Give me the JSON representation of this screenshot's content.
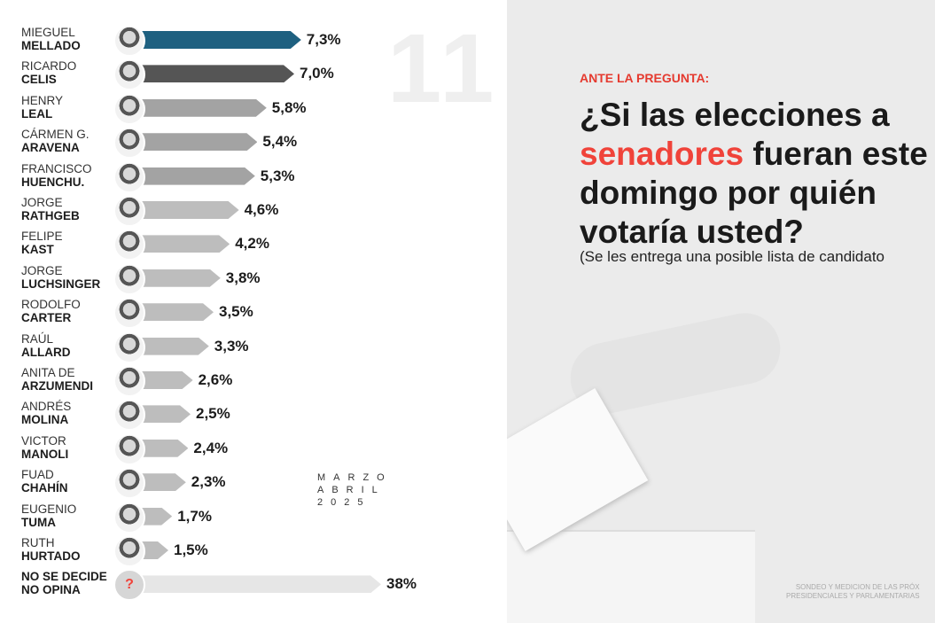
{
  "watermark_number": "11",
  "question": {
    "lead": "ANTE LA PREGUNTA:",
    "part1": "¿Si las elecciones a ",
    "highlight": "senadores",
    "part2": " fueran este domingo por quién votaría usted?",
    "note": "(Se les entrega una posible lista de candidato"
  },
  "date": {
    "line1": "MARZO",
    "line2": "ABRIL",
    "line3": "2025"
  },
  "footer": {
    "line1": "SONDEO Y MEDICION DE LAS PRÓX",
    "line2": "PRESIDENCIALES Y PARLAMENTARIAS"
  },
  "colors": {
    "leader": "#1e6080",
    "second": "#555555",
    "mid": "#a3a3a3",
    "low": "#bdbdbd",
    "undecided": "#e6e6e6",
    "accent": "#f0433a"
  },
  "chart_data": {
    "type": "bar",
    "orientation": "horizontal",
    "unit": "%",
    "categories": [
      {
        "first": "MIEGUEL",
        "last": "MELLADO"
      },
      {
        "first": "RICARDO",
        "last": "CELIS"
      },
      {
        "first": "HENRY",
        "last": "LEAL"
      },
      {
        "first": "CÁRMEN G.",
        "last": "ARAVENA"
      },
      {
        "first": "FRANCISCO",
        "last": "HUENCHU."
      },
      {
        "first": "JORGE",
        "last": "RATHGEB"
      },
      {
        "first": "FELIPE",
        "last": "KAST"
      },
      {
        "first": "JORGE",
        "last": "LUCHSINGER"
      },
      {
        "first": "RODOLFO",
        "last": "CARTER"
      },
      {
        "first": "RAÚL",
        "last": "ALLARD"
      },
      {
        "first": "ANITA DE",
        "last": "ARZUMENDI"
      },
      {
        "first": "ANDRÉS",
        "last": "MOLINA"
      },
      {
        "first": "VICTOR",
        "last": "MANOLI"
      },
      {
        "first": "FUAD",
        "last": "CHAHÍN"
      },
      {
        "first": "EUGENIO",
        "last": "TUMA"
      },
      {
        "first": "RUTH",
        "last": "HURTADO"
      },
      {
        "first": "",
        "last": "NO SE DECIDE NO OPINA"
      }
    ],
    "values": [
      7.3,
      7.0,
      5.8,
      5.4,
      5.3,
      4.6,
      4.2,
      3.8,
      3.5,
      3.3,
      2.6,
      2.5,
      2.4,
      2.3,
      1.7,
      1.5,
      38
    ],
    "labels": [
      "7,3%",
      "7,0%",
      "5,8%",
      "5,4%",
      "5,3%",
      "4,6%",
      "4,2%",
      "3,8%",
      "3,5%",
      "3,3%",
      "2,6%",
      "2,5%",
      "2,4%",
      "2,3%",
      "1,7%",
      "1,5%",
      "38%"
    ],
    "undecided_icon": "question-mark-icon"
  }
}
